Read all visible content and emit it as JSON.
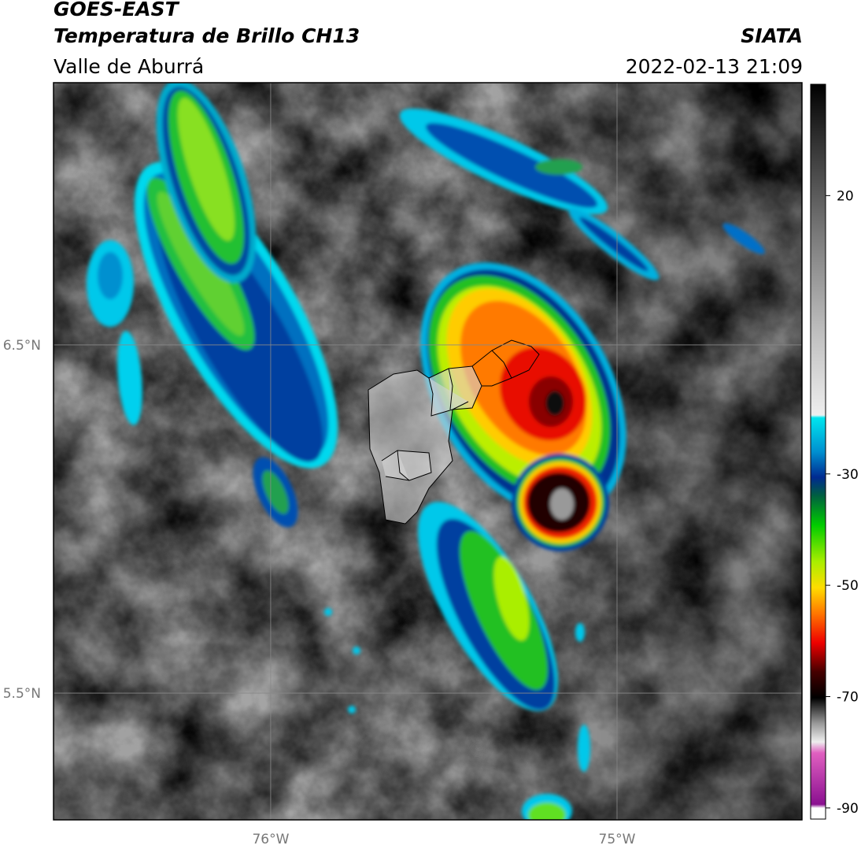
{
  "header": {
    "title": "GOES-EAST",
    "subtitle": "Temperatura de Brillo CH13",
    "region": "Valle de Aburrá",
    "source": "SIATA",
    "datetime": "2022-02-13 21:09"
  },
  "map": {
    "xlim": [
      -76.627,
      -74.466
    ],
    "ylim": [
      5.136,
      7.253
    ],
    "xticks": [
      {
        "value": -76,
        "label": "76°W"
      },
      {
        "value": -75,
        "label": "75°W"
      }
    ],
    "yticks": [
      {
        "value": 5.5,
        "label": "5.5°N"
      },
      {
        "value": 6.5,
        "label": "6.5°N"
      }
    ],
    "grid": true
  },
  "colorbar": {
    "lim": [
      -92,
      40
    ],
    "ticks": [
      20,
      -30,
      -50,
      -70,
      -90
    ]
  }
}
